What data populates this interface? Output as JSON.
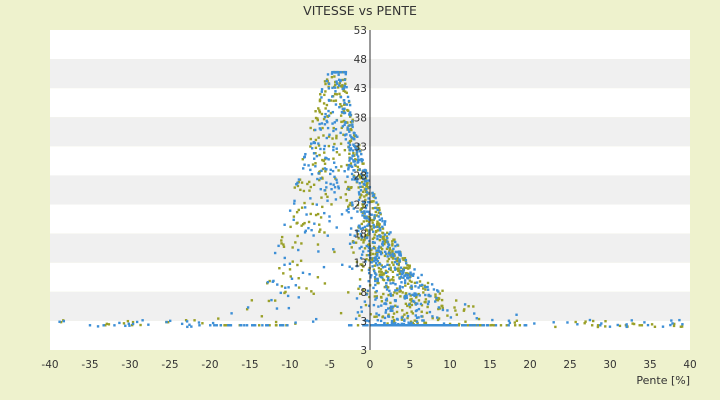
{
  "chart_data": {
    "type": "scatter",
    "title": "VITESSE vs PENTE",
    "xlabel": "Pente [%]",
    "ylabel": "",
    "xlim": [
      -40,
      40
    ],
    "ylim": [
      3,
      53
    ],
    "x_ticks": [
      "-40",
      "-35",
      "-30",
      "-25",
      "-20",
      "-15",
      "-10",
      "-5",
      "0",
      "5",
      "10",
      "15",
      "20",
      "25",
      "30",
      "35",
      "40"
    ],
    "y_ticks": [
      "3",
      "3",
      "8",
      "13",
      "18",
      "23",
      "28",
      "33",
      "38",
      "43",
      "48",
      "53"
    ],
    "grid": "horizontal bands",
    "legend": "none",
    "colors": {
      "background": "#eef2cd",
      "band_light": "#ffffff",
      "band_dark": "#f0f0f0",
      "series_blue": "#3d8fd6",
      "series_olive": "#9aa028",
      "axis": "#333333"
    },
    "series": [
      {
        "name": "",
        "color": "#9aa028",
        "x": [],
        "y": []
      },
      {
        "name": "",
        "color": "#3d8fd6",
        "x": [],
        "y": []
      }
    ]
  }
}
